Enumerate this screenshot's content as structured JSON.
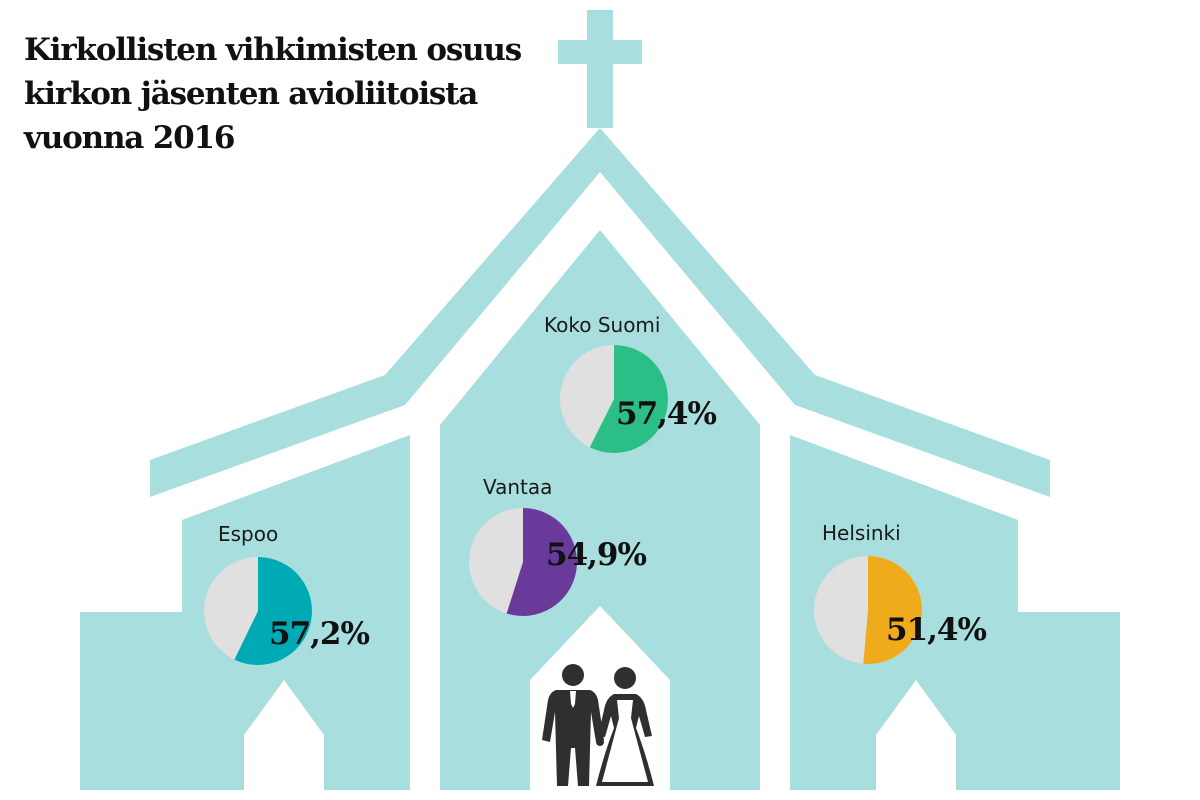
{
  "title_lines": [
    "Kirkollisten vihkimisten osuus",
    "kirkon jäsenten avioliitoista",
    "vuonna 2016"
  ],
  "colors": {
    "church": "#a8dede",
    "white": "#ffffff",
    "remainder": "#e0e0e0",
    "couple": "#2f2f2f"
  },
  "chart_data": {
    "type": "pie",
    "unit": "%",
    "series": [
      {
        "name": "Koko Suomi",
        "value": 57.4,
        "label": "57,4%",
        "color": "#2bbf87"
      },
      {
        "name": "Vantaa",
        "value": 54.9,
        "label": "54,9%",
        "color": "#6a3a9a"
      },
      {
        "name": "Espoo",
        "value": 57.2,
        "label": "57,2%",
        "color": "#00aab5"
      },
      {
        "name": "Helsinki",
        "value": 51.4,
        "label": "51,4%",
        "color": "#f0ab1c"
      }
    ]
  }
}
